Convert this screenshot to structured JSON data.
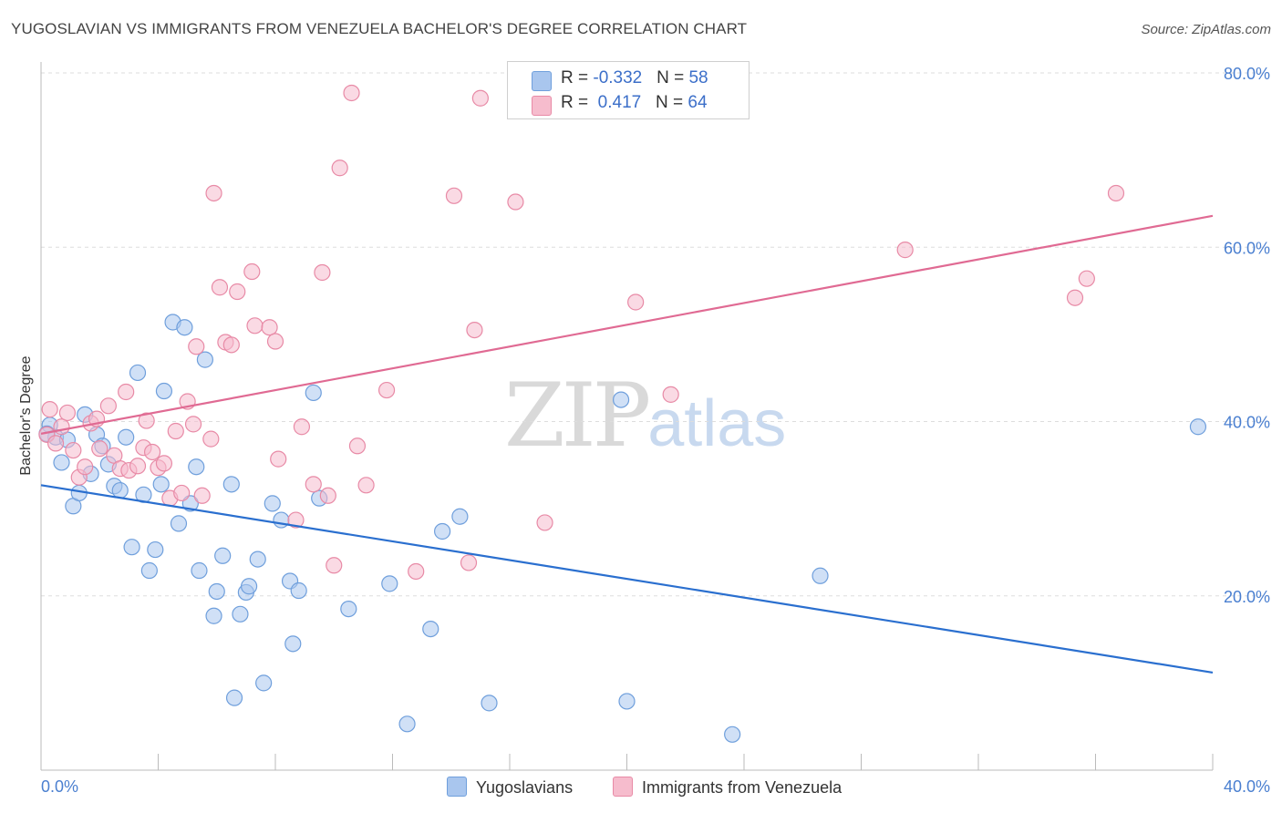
{
  "title": "YUGOSLAVIAN VS IMMIGRANTS FROM VENEZUELA BACHELOR'S DEGREE CORRELATION CHART",
  "source": "Source: ZipAtlas.com",
  "watermark": {
    "zip": "ZIP",
    "atlas": "atlas"
  },
  "legend": {
    "rows": [
      {
        "r_label": "R = ",
        "r_value": "-0.332",
        "n_label": "N = ",
        "n_value": "58"
      },
      {
        "r_label": "R = ",
        "r_value": " 0.417",
        "n_label": "N = ",
        "n_value": "64"
      }
    ]
  },
  "bottom_legend": [
    "Yugoslavians",
    "Immigrants from Venezuela"
  ],
  "colors": {
    "blue_fill": "#a9c6ee",
    "blue_stroke": "#6f9fdc",
    "blue_line": "#2a6fcf",
    "pink_fill": "#f6bccd",
    "pink_stroke": "#e88aa6",
    "pink_line": "#e06a93",
    "tick_label": "#4a7fd0",
    "grid": "#dddddd"
  },
  "chart_data": {
    "type": "scatter",
    "title": "YUGOSLAVIAN VS IMMIGRANTS FROM VENEZUELA BACHELOR'S DEGREE CORRELATION CHART",
    "xlabel": "",
    "ylabel": "Bachelor's Degree",
    "xlim": [
      0,
      40
    ],
    "ylim": [
      0,
      80
    ],
    "x_tick_labels": [
      "0.0%",
      "40.0%"
    ],
    "y_tick_labels": [
      "20.0%",
      "40.0%",
      "60.0%",
      "80.0%"
    ],
    "y_ticks": [
      20,
      40,
      60,
      80
    ],
    "grid": true,
    "legend_position": "top-center",
    "series": [
      {
        "name": "Yugoslavians",
        "color": "#a9c6ee",
        "trend": {
          "x": [
            0,
            40
          ],
          "y": [
            32.7,
            11.2
          ]
        },
        "points": [
          [
            0.3,
            39.6
          ],
          [
            0.5,
            38.2
          ],
          [
            0.7,
            35.3
          ],
          [
            0.9,
            37.9
          ],
          [
            1.1,
            30.3
          ],
          [
            1.3,
            31.8
          ],
          [
            1.5,
            40.8
          ],
          [
            1.7,
            34.0
          ],
          [
            1.9,
            38.5
          ],
          [
            2.1,
            37.2
          ],
          [
            2.3,
            35.1
          ],
          [
            2.5,
            32.6
          ],
          [
            2.7,
            32.1
          ],
          [
            2.9,
            38.2
          ],
          [
            3.1,
            25.6
          ],
          [
            3.3,
            45.6
          ],
          [
            3.5,
            31.6
          ],
          [
            3.7,
            22.9
          ],
          [
            3.9,
            25.3
          ],
          [
            4.1,
            32.8
          ],
          [
            4.2,
            43.5
          ],
          [
            4.5,
            51.4
          ],
          [
            4.7,
            28.3
          ],
          [
            4.9,
            50.8
          ],
          [
            5.1,
            30.6
          ],
          [
            5.3,
            34.8
          ],
          [
            5.4,
            22.9
          ],
          [
            5.6,
            47.1
          ],
          [
            5.9,
            17.7
          ],
          [
            6.0,
            20.5
          ],
          [
            6.2,
            24.6
          ],
          [
            6.5,
            32.8
          ],
          [
            6.6,
            8.3
          ],
          [
            6.8,
            17.9
          ],
          [
            7.0,
            20.4
          ],
          [
            7.1,
            21.1
          ],
          [
            7.4,
            24.2
          ],
          [
            7.6,
            10.0
          ],
          [
            7.9,
            30.6
          ],
          [
            8.2,
            28.7
          ],
          [
            8.5,
            21.7
          ],
          [
            8.6,
            14.5
          ],
          [
            8.8,
            20.6
          ],
          [
            9.5,
            31.2
          ],
          [
            9.3,
            43.3
          ],
          [
            10.5,
            18.5
          ],
          [
            11.9,
            21.4
          ],
          [
            12.5,
            5.3
          ],
          [
            13.3,
            16.2
          ],
          [
            13.7,
            27.4
          ],
          [
            14.3,
            29.1
          ],
          [
            15.3,
            7.7
          ],
          [
            19.8,
            42.5
          ],
          [
            20.0,
            7.9
          ],
          [
            23.6,
            4.1
          ],
          [
            26.6,
            22.3
          ],
          [
            39.5,
            39.4
          ],
          [
            0.2,
            38.6
          ]
        ]
      },
      {
        "name": "Immigrants from Venezuela",
        "color": "#f6bccd",
        "trend": {
          "x": [
            0,
            40
          ],
          "y": [
            38.6,
            63.6
          ]
        },
        "points": [
          [
            0.2,
            38.5
          ],
          [
            0.3,
            41.4
          ],
          [
            0.5,
            37.5
          ],
          [
            0.7,
            39.4
          ],
          [
            0.9,
            41.0
          ],
          [
            1.1,
            36.7
          ],
          [
            1.3,
            33.6
          ],
          [
            1.5,
            34.8
          ],
          [
            1.7,
            39.8
          ],
          [
            1.9,
            40.3
          ],
          [
            2.0,
            36.9
          ],
          [
            2.3,
            41.8
          ],
          [
            2.5,
            36.1
          ],
          [
            2.7,
            34.6
          ],
          [
            2.9,
            43.4
          ],
          [
            3.0,
            34.4
          ],
          [
            3.3,
            34.9
          ],
          [
            3.5,
            37.0
          ],
          [
            3.6,
            40.1
          ],
          [
            3.8,
            36.5
          ],
          [
            4.0,
            34.7
          ],
          [
            4.2,
            35.2
          ],
          [
            4.4,
            31.2
          ],
          [
            4.6,
            38.9
          ],
          [
            4.8,
            31.8
          ],
          [
            5.0,
            42.3
          ],
          [
            5.2,
            39.7
          ],
          [
            5.3,
            48.6
          ],
          [
            5.5,
            31.5
          ],
          [
            5.8,
            38.0
          ],
          [
            5.9,
            66.2
          ],
          [
            6.1,
            55.4
          ],
          [
            6.3,
            49.1
          ],
          [
            6.5,
            48.8
          ],
          [
            6.7,
            54.9
          ],
          [
            7.2,
            57.2
          ],
          [
            7.3,
            51.0
          ],
          [
            7.8,
            50.8
          ],
          [
            8.0,
            49.2
          ],
          [
            8.1,
            35.7
          ],
          [
            8.7,
            28.7
          ],
          [
            8.9,
            39.4
          ],
          [
            9.3,
            32.8
          ],
          [
            9.6,
            57.1
          ],
          [
            9.8,
            31.5
          ],
          [
            10.0,
            23.5
          ],
          [
            10.2,
            69.1
          ],
          [
            10.6,
            77.7
          ],
          [
            10.8,
            37.2
          ],
          [
            11.1,
            32.7
          ],
          [
            11.8,
            43.6
          ],
          [
            12.8,
            22.8
          ],
          [
            14.1,
            65.9
          ],
          [
            14.6,
            23.8
          ],
          [
            14.8,
            50.5
          ],
          [
            15.0,
            77.1
          ],
          [
            16.2,
            65.2
          ],
          [
            17.2,
            28.4
          ],
          [
            20.3,
            53.7
          ],
          [
            21.5,
            43.1
          ],
          [
            29.5,
            59.7
          ],
          [
            35.3,
            54.2
          ],
          [
            35.7,
            56.4
          ],
          [
            36.7,
            66.2
          ]
        ]
      }
    ]
  }
}
